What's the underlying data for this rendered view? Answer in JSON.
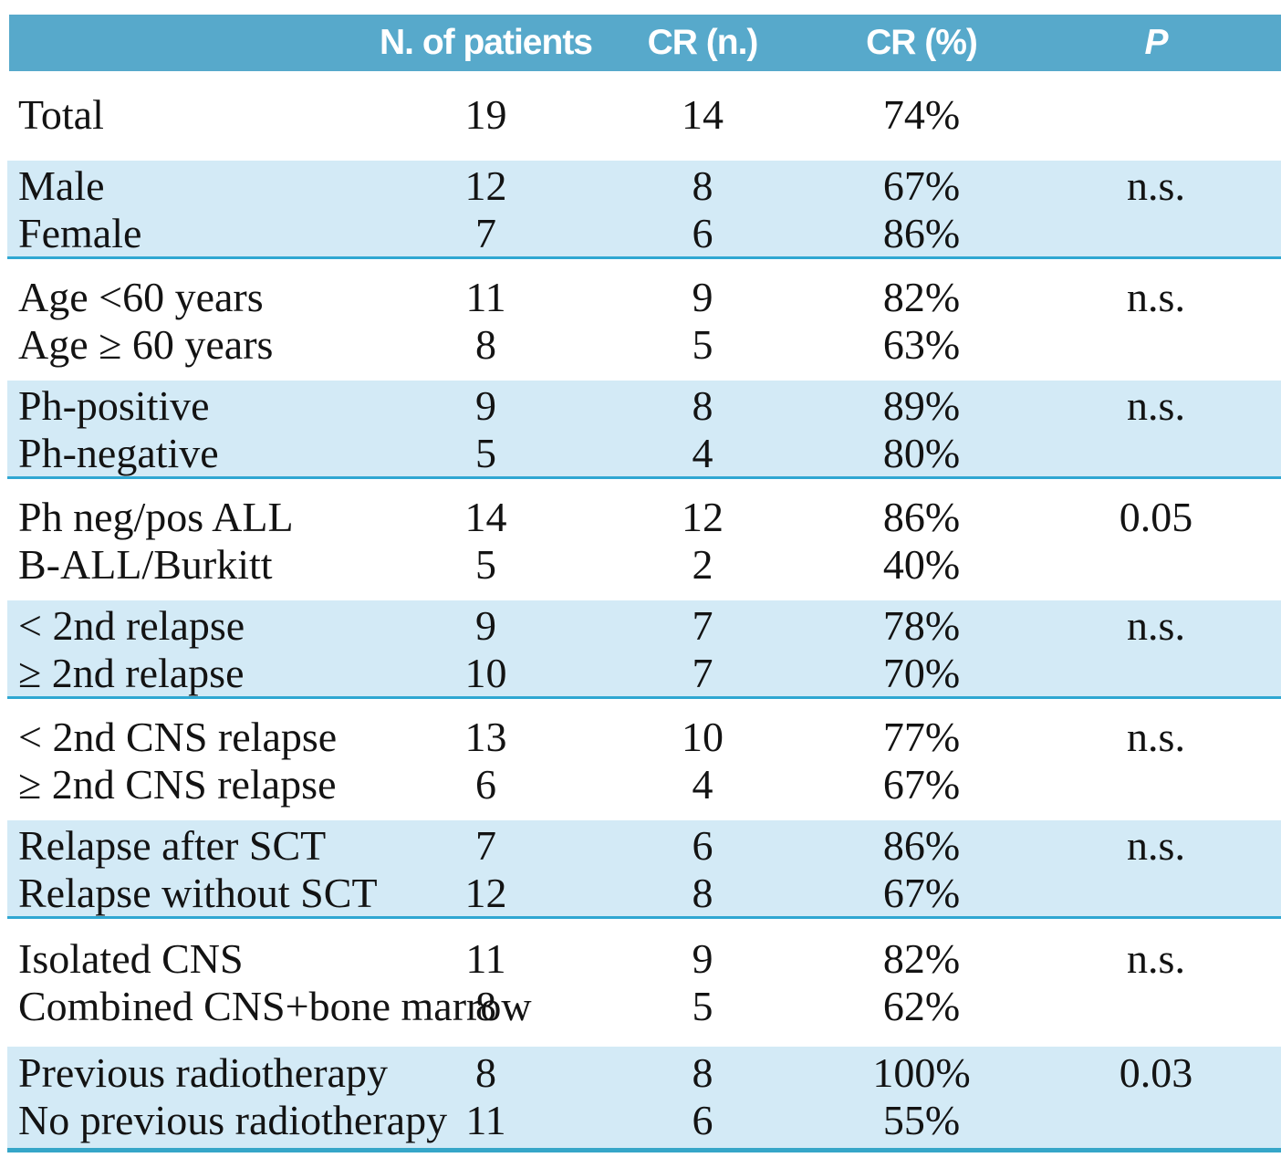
{
  "figure": {
    "type": "table",
    "colors": {
      "header_bg": "#57a9cb",
      "band_bg": "#d3eaf6",
      "rule_thin": "#2fa7d2",
      "rule_thick": "#36a6c8",
      "text": "#131313",
      "header_text": "#ffffff"
    },
    "header": {
      "label": "",
      "patients": "N. of patients",
      "cr_n": "CR (n.)",
      "cr_pct": "CR (%)",
      "p": "P"
    },
    "groups": [
      {
        "shade": "white",
        "rows": [
          {
            "label": "Total",
            "n": "19",
            "cr_n": "14",
            "cr_pct": "74%",
            "p": ""
          }
        ]
      },
      {
        "shade": "blue",
        "rows": [
          {
            "label": "Male",
            "n": "12",
            "cr_n": "8",
            "cr_pct": "67%",
            "p": "n.s."
          },
          {
            "label": "Female",
            "n": "7",
            "cr_n": "6",
            "cr_pct": "86%",
            "p": ""
          }
        ]
      },
      {
        "shade": "white",
        "rows": [
          {
            "label": "Age <60 years",
            "n": "11",
            "cr_n": "9",
            "cr_pct": "82%",
            "p": "n.s."
          },
          {
            "label": "Age ≥ 60 years",
            "n": "8",
            "cr_n": "5",
            "cr_pct": "63%",
            "p": ""
          }
        ]
      },
      {
        "shade": "blue",
        "rows": [
          {
            "label": "Ph-positive",
            "n": "9",
            "cr_n": "8",
            "cr_pct": "89%",
            "p": "n.s."
          },
          {
            "label": "Ph-negative",
            "n": "5",
            "cr_n": "4",
            "cr_pct": "80%",
            "p": ""
          }
        ]
      },
      {
        "shade": "white",
        "rows": [
          {
            "label": "Ph neg/pos ALL",
            "n": "14",
            "cr_n": "12",
            "cr_pct": "86%",
            "p": "0.05"
          },
          {
            "label": "B-ALL/Burkitt",
            "n": "5",
            "cr_n": "2",
            "cr_pct": "40%",
            "p": ""
          }
        ]
      },
      {
        "shade": "blue",
        "rows": [
          {
            "label": "< 2nd relapse",
            "n": "9",
            "cr_n": "7",
            "cr_pct": "78%",
            "p": "n.s."
          },
          {
            "label": "≥ 2nd relapse",
            "n": "10",
            "cr_n": "7",
            "cr_pct": "70%",
            "p": ""
          }
        ]
      },
      {
        "shade": "white",
        "rows": [
          {
            "label": "< 2nd CNS relapse",
            "n": "13",
            "cr_n": "10",
            "cr_pct": "77%",
            "p": "n.s."
          },
          {
            "label": "≥ 2nd CNS relapse",
            "n": "6",
            "cr_n": "4",
            "cr_pct": "67%",
            "p": ""
          }
        ]
      },
      {
        "shade": "blue",
        "rows": [
          {
            "label": "Relapse after SCT",
            "n": "7",
            "cr_n": "6",
            "cr_pct": "86%",
            "p": "n.s."
          },
          {
            "label": "Relapse without SCT",
            "n": "12",
            "cr_n": "8",
            "cr_pct": "67%",
            "p": ""
          }
        ]
      },
      {
        "shade": "white",
        "rows": [
          {
            "label": "Isolated CNS",
            "n": "11",
            "cr_n": "9",
            "cr_pct": "82%",
            "p": "n.s."
          },
          {
            "label": "Combined CNS+bone marrow",
            "n": "8",
            "cr_n": "5",
            "cr_pct": "62%",
            "p": ""
          }
        ]
      },
      {
        "shade": "blue",
        "rows": [
          {
            "label": "Previous radiotherapy",
            "n": "8",
            "cr_n": "8",
            "cr_pct": "100%",
            "p": "0.03"
          },
          {
            "label": "No previous radiotherapy",
            "n": "11",
            "cr_n": "6",
            "cr_pct": "55%",
            "p": ""
          }
        ]
      }
    ]
  }
}
